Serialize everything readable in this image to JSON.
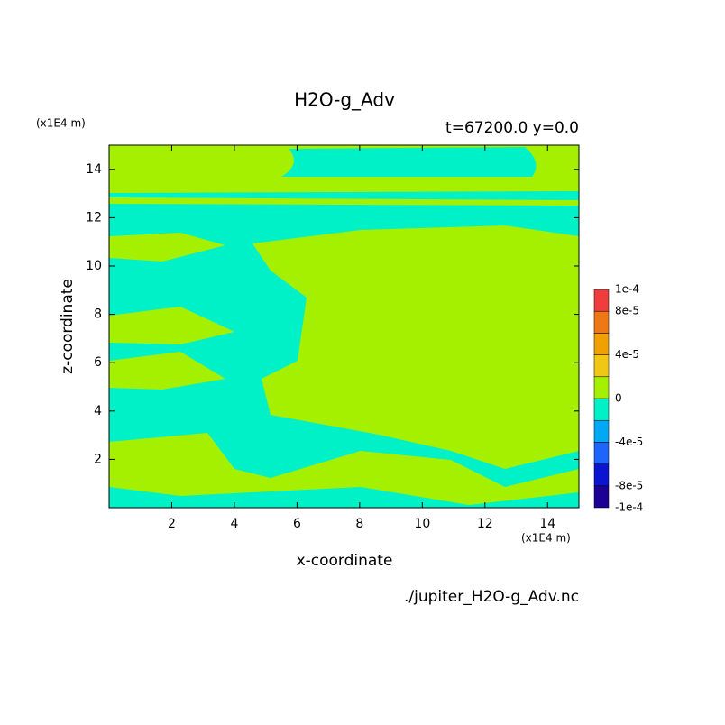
{
  "chart_data": {
    "type": "contour",
    "title": "H2O-g_Adv",
    "subtitle": "t=67200.0 y=0.0",
    "xlabel": "x-coordinate",
    "ylabel": "z-coordinate",
    "x_unit": "(x1E4 m)",
    "y_unit": "(x1E4 m)",
    "file": "./jupiter_H2O-g_Adv.nc",
    "xlim": [
      0,
      15
    ],
    "ylim": [
      0,
      15
    ],
    "xticks": [
      2,
      4,
      6,
      8,
      10,
      12,
      14
    ],
    "yticks": [
      2,
      4,
      6,
      8,
      10,
      12,
      14
    ],
    "colorbar": {
      "levels": [
        -0.0001,
        -8e-05,
        -6e-05,
        -4e-05,
        -2e-05,
        0,
        2e-05,
        4e-05,
        6e-05,
        8e-05,
        0.0001
      ],
      "colors": [
        "#1e0096",
        "#0a14d2",
        "#1e64ff",
        "#00a8f5",
        "#00f0c8",
        "#a4f000",
        "#f0c814",
        "#f0a000",
        "#f07814",
        "#f03c3c"
      ],
      "ticks": [
        {
          "value": 0.0001,
          "label": "1e-4"
        },
        {
          "value": 8e-05,
          "label": "8e-5"
        },
        {
          "value": 4e-05,
          "label": "4e-5"
        },
        0,
        {
          "value": -4e-05,
          "label": "-4e-5"
        },
        {
          "value": -8e-05,
          "label": "-8e-5"
        },
        {
          "value": -0.0001,
          "label": "-1e-4"
        }
      ]
    }
  }
}
